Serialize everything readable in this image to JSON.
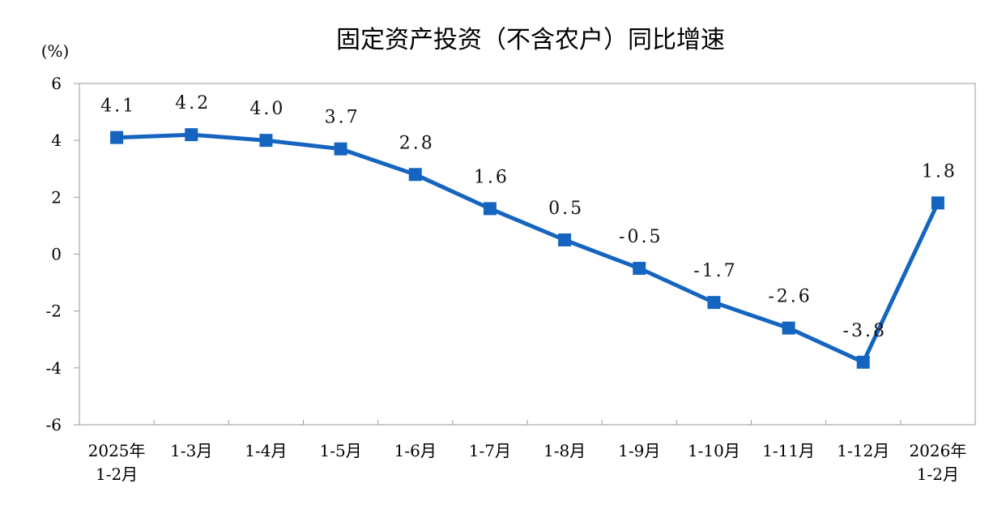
{
  "chart_data": {
    "type": "line",
    "title": "固定资产投资（不含农户）同比增速",
    "ylabel": "(%)",
    "ylim": [
      -6,
      6
    ],
    "yticks": [
      6,
      4,
      2,
      0,
      -2,
      -4,
      -6
    ],
    "categories": [
      [
        "2025年",
        "1-2月"
      ],
      [
        "1-3月"
      ],
      [
        "1-4月"
      ],
      [
        "1-5月"
      ],
      [
        "1-6月"
      ],
      [
        "1-7月"
      ],
      [
        "1-8月"
      ],
      [
        "1-9月"
      ],
      [
        "1-10月"
      ],
      [
        "1-11月"
      ],
      [
        "1-12月"
      ],
      [
        "2026年",
        "1-2月"
      ]
    ],
    "series": [
      {
        "values": [
          4.1,
          4.2,
          4.0,
          3.7,
          2.8,
          1.6,
          0.5,
          -0.5,
          -1.7,
          -2.6,
          -3.8,
          1.8
        ],
        "labels": [
          "4.1",
          "4.2",
          "4.0",
          "3.7",
          "2.8",
          "1.6",
          "0.5",
          "-0.5",
          "-1.7",
          "-2.6",
          "-3.8",
          "1.8"
        ],
        "color": "#1565c0",
        "marker": "square"
      }
    ],
    "grid": false,
    "legend": "none"
  }
}
